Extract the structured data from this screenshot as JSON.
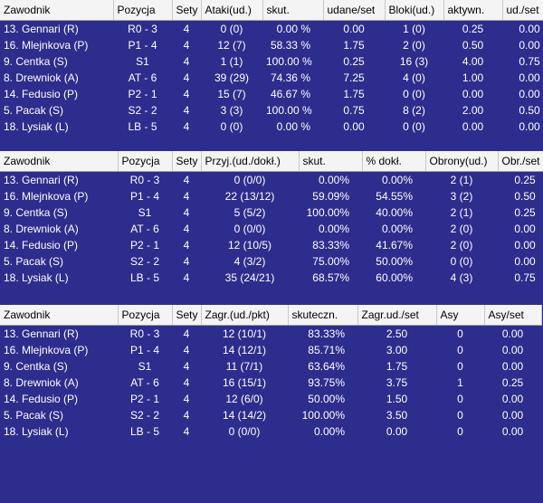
{
  "tables": [
    {
      "headers": [
        "Zawodnik",
        "Pozycja",
        "Sety",
        "Ataki(ud.)",
        "skut.",
        "udane/set",
        "Bloki(ud.)",
        "aktywn.",
        "ud./set"
      ],
      "rows": [
        [
          "13. Gennari (R)",
          "R0 - 3",
          "4",
          "0 (0)",
          "0.00 %",
          "0.00",
          "1 (0)",
          "0.25",
          "0.00"
        ],
        [
          "16. Mlejnkova (P)",
          "P1 - 4",
          "4",
          "12 (7)",
          "58.33 %",
          "1.75",
          "2 (0)",
          "0.50",
          "0.00"
        ],
        [
          "9. Centka (S)",
          "S1",
          "4",
          "1 (1)",
          "100.00 %",
          "0.25",
          "16 (3)",
          "4.00",
          "0.75"
        ],
        [
          "8. Drewniok (A)",
          "AT - 6",
          "4",
          "39 (29)",
          "74.36 %",
          "7.25",
          "4 (0)",
          "1.00",
          "0.00"
        ],
        [
          "14. Fedusio (P)",
          "P2 - 1",
          "4",
          "15 (7)",
          "46.67 %",
          "1.75",
          "0 (0)",
          "0.00",
          "0.00"
        ],
        [
          "5. Pacak (S)",
          "S2 - 2",
          "4",
          "3 (3)",
          "100.00 %",
          "0.75",
          "8 (2)",
          "2.00",
          "0.50"
        ],
        [
          "18. Lysiak (L)",
          "LB - 5",
          "4",
          "0 (0)",
          "0.00 %",
          "0.00",
          "0 (0)",
          "0.00",
          "0.00"
        ]
      ]
    },
    {
      "headers": [
        "Zawodnik",
        "Pozycja",
        "Sety",
        "Przyj.(ud./dokł.)",
        "skut.",
        "% dokł.",
        "Obrony(ud.)",
        "Obr./set"
      ],
      "rows": [
        [
          "13. Gennari (R)",
          "R0 - 3",
          "4",
          "0 (0/0)",
          "0.00%",
          "0.00%",
          "2 (1)",
          "0.25"
        ],
        [
          "16. Mlejnkova (P)",
          "P1 - 4",
          "4",
          "22 (13/12)",
          "59.09%",
          "54.55%",
          "3 (2)",
          "0.50"
        ],
        [
          "9. Centka (S)",
          "S1",
          "4",
          "5 (5/2)",
          "100.00%",
          "40.00%",
          "2 (1)",
          "0.25"
        ],
        [
          "8. Drewniok (A)",
          "AT - 6",
          "4",
          "0 (0/0)",
          "0.00%",
          "0.00%",
          "2 (0)",
          "0.00"
        ],
        [
          "14. Fedusio (P)",
          "P2 - 1",
          "4",
          "12 (10/5)",
          "83.33%",
          "41.67%",
          "2 (0)",
          "0.00"
        ],
        [
          "5. Pacak (S)",
          "S2 - 2",
          "4",
          "4 (3/2)",
          "75.00%",
          "50.00%",
          "0 (0)",
          "0.00"
        ],
        [
          "18. Lysiak (L)",
          "LB - 5",
          "4",
          "35 (24/21)",
          "68.57%",
          "60.00%",
          "4 (3)",
          "0.75"
        ]
      ]
    },
    {
      "headers": [
        "Zawodnik",
        "Pozycja",
        "Sety",
        "Zagr.(ud./pkt)",
        "skuteczn.",
        "Zagr.ud./set",
        "Asy",
        "Asy/set"
      ],
      "rows": [
        [
          "13. Gennari (R)",
          "R0 - 3",
          "4",
          "12 (10/1)",
          "83.33%",
          "2.50",
          "0",
          "0.00"
        ],
        [
          "16. Mlejnkova (P)",
          "P1 - 4",
          "4",
          "14 (12/1)",
          "85.71%",
          "3.00",
          "0",
          "0.00"
        ],
        [
          "9. Centka (S)",
          "S1",
          "4",
          "11 (7/1)",
          "63.64%",
          "1.75",
          "0",
          "0.00"
        ],
        [
          "8. Drewniok (A)",
          "AT - 6",
          "4",
          "16 (15/1)",
          "93.75%",
          "3.75",
          "1",
          "0.25"
        ],
        [
          "14. Fedusio (P)",
          "P2 - 1",
          "4",
          "12 (6/0)",
          "50.00%",
          "1.50",
          "0",
          "0.00"
        ],
        [
          "5. Pacak (S)",
          "S2 - 2",
          "4",
          "14 (14/2)",
          "100.00%",
          "3.50",
          "0",
          "0.00"
        ],
        [
          "18. Lysiak (L)",
          "LB - 5",
          "4",
          "0 (0/0)",
          "0.00%",
          "0.00",
          "0",
          "0.00"
        ]
      ]
    }
  ]
}
